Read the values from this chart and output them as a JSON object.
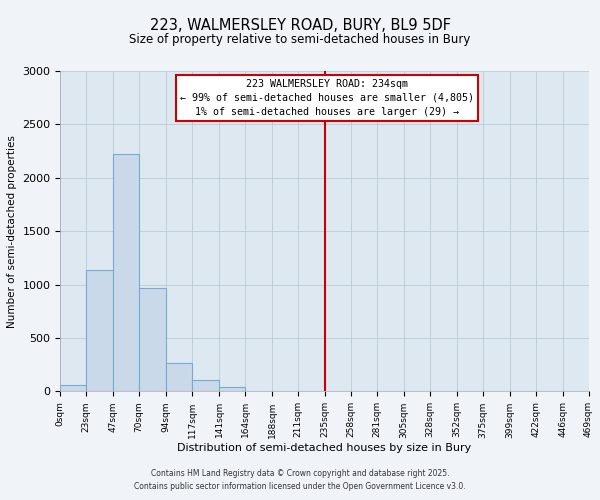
{
  "title": "223, WALMERSLEY ROAD, BURY, BL9 5DF",
  "subtitle": "Size of property relative to semi-detached houses in Bury",
  "xlabel": "Distribution of semi-detached houses by size in Bury",
  "ylabel": "Number of semi-detached properties",
  "bin_labels": [
    "0sqm",
    "23sqm",
    "47sqm",
    "70sqm",
    "94sqm",
    "117sqm",
    "141sqm",
    "164sqm",
    "188sqm",
    "211sqm",
    "235sqm",
    "258sqm",
    "281sqm",
    "305sqm",
    "328sqm",
    "352sqm",
    "375sqm",
    "399sqm",
    "422sqm",
    "446sqm",
    "469sqm"
  ],
  "bin_edges": [
    0,
    23,
    47,
    70,
    94,
    117,
    141,
    164,
    188,
    211,
    235,
    258,
    281,
    305,
    328,
    352,
    375,
    399,
    422,
    446,
    469
  ],
  "bar_heights": [
    60,
    1140,
    2220,
    970,
    265,
    105,
    45,
    5,
    0,
    0,
    0,
    0,
    0,
    0,
    0,
    0,
    0,
    0,
    0,
    0
  ],
  "bar_color": "#c9d9ea",
  "bar_edgecolor": "#7aaad0",
  "vline_x": 235,
  "vline_color": "#cc0000",
  "annotation_title": "223 WALMERSLEY ROAD: 234sqm",
  "annotation_line1": "← 99% of semi-detached houses are smaller (4,805)",
  "annotation_line2": "1% of semi-detached houses are larger (29) →",
  "annotation_box_edgecolor": "#cc0000",
  "ylim": [
    0,
    3000
  ],
  "yticks": [
    0,
    500,
    1000,
    1500,
    2000,
    2500,
    3000
  ],
  "footer1": "Contains HM Land Registry data © Crown copyright and database right 2025.",
  "footer2": "Contains public sector information licensed under the Open Government Licence v3.0.",
  "bg_color": "#f0f4f8",
  "plot_bg_color": "#dde8f0"
}
